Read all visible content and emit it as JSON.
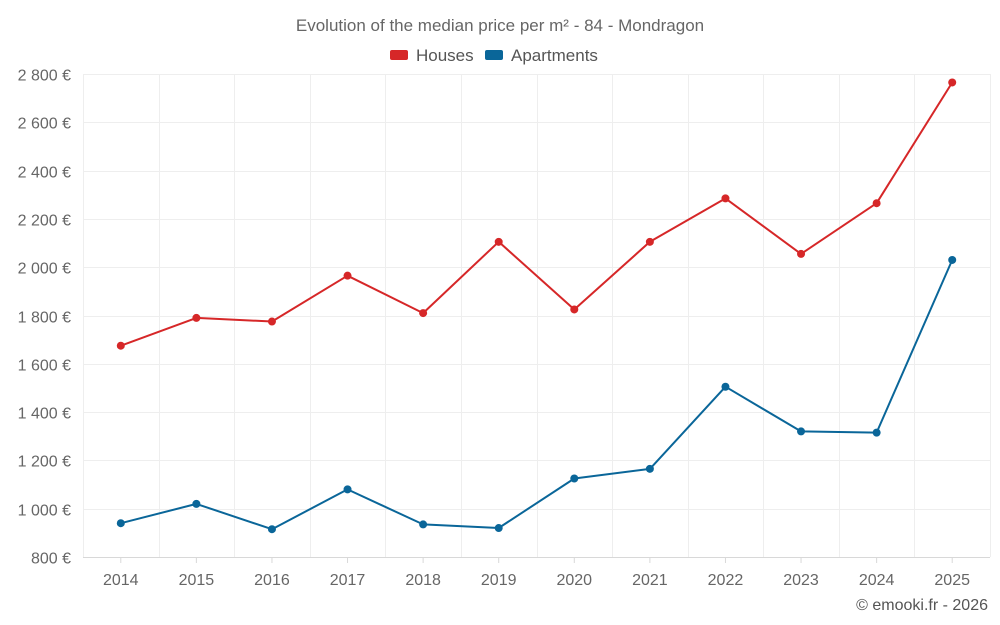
{
  "chart_data": {
    "type": "line",
    "title": "Evolution of the median price per m² - 84 - Mondragon",
    "categories": [
      "2014",
      "2015",
      "2016",
      "2017",
      "2018",
      "2019",
      "2020",
      "2021",
      "2022",
      "2023",
      "2024",
      "2025"
    ],
    "series": [
      {
        "name": "Houses",
        "color": "#d62728",
        "values": [
          1675,
          1790,
          1775,
          1965,
          1810,
          2105,
          1825,
          2105,
          2285,
          2055,
          2265,
          2765
        ]
      },
      {
        "name": "Apartments",
        "color": "#0a6699",
        "values": [
          940,
          1020,
          915,
          1080,
          935,
          920,
          1125,
          1165,
          1505,
          1320,
          1315,
          2030
        ]
      }
    ],
    "ylim": [
      800,
      2800
    ],
    "yticks": [
      800,
      1000,
      1200,
      1400,
      1600,
      1800,
      2000,
      2200,
      2400,
      2600,
      2800
    ],
    "ytick_labels": [
      "800 €",
      "1 000 €",
      "1 200 €",
      "1 400 €",
      "1 600 €",
      "1 800 €",
      "2 000 €",
      "2 200 €",
      "2 400 €",
      "2 600 €",
      "2 800 €"
    ],
    "grid": true,
    "legend_position": "top-center",
    "xlabel": "",
    "ylabel": ""
  },
  "credit": "© emooki.fr - 2026"
}
